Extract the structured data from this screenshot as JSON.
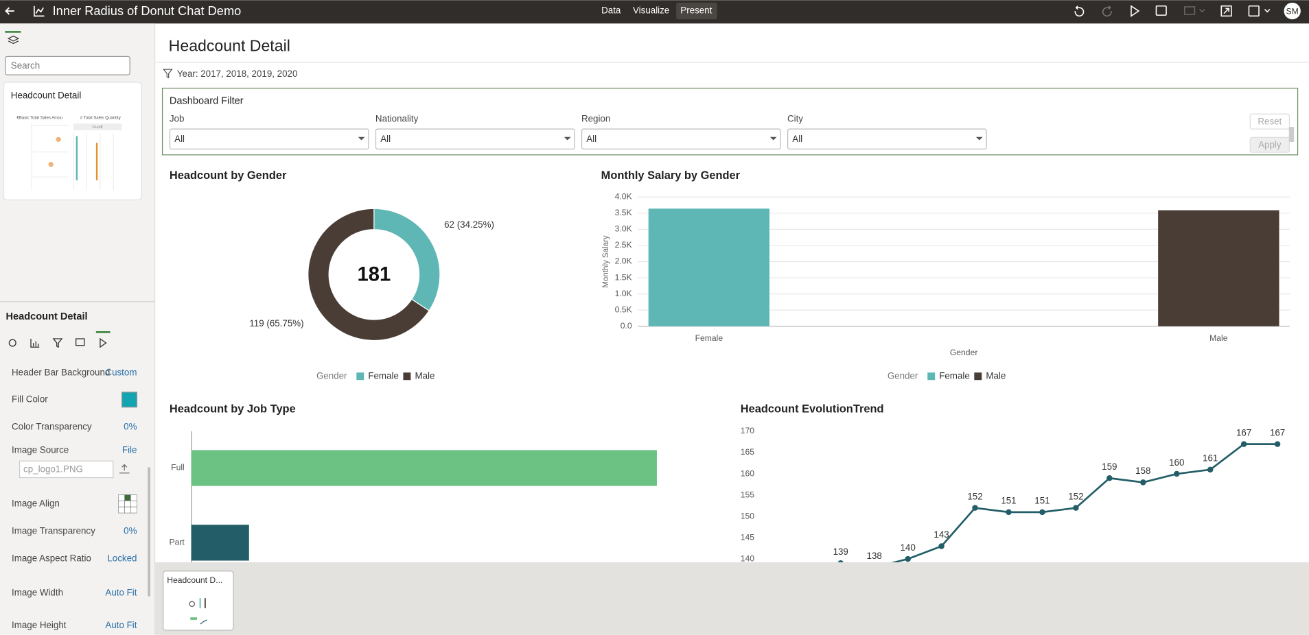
{
  "app": {
    "title": "Inner Radius of Donut Chat Demo",
    "tabs": [
      "Data",
      "Visualize",
      "Present"
    ],
    "active_tab": 2,
    "user": "SM"
  },
  "sidebar": {
    "search": "Search",
    "canvas_card": {
      "title": "Headcount Detail",
      "thumb_texts": [
        "€Basic Total Sales Amou",
        "# Total Sales Quantity",
        "FALSE"
      ]
    },
    "section_title": "Headcount Detail",
    "properties": [
      {
        "label": "Header Bar Background",
        "value": "Custom"
      },
      {
        "label": "Fill Color",
        "color": "#14a3b0"
      },
      {
        "label": "Color Transparency",
        "value": "0%"
      },
      {
        "label": "Image Source",
        "value": "File",
        "input": "cp_logo1.PNG"
      },
      {
        "label": "Image Align"
      },
      {
        "label": "Image Transparency",
        "value": "0%"
      },
      {
        "label": "Image Aspect Ratio",
        "value": "Locked"
      },
      {
        "label": "Image Width",
        "value": "Auto Fit"
      },
      {
        "label": "Image Height",
        "value": "Auto Fit"
      }
    ]
  },
  "page": {
    "title": "Headcount Detail",
    "filter": "Year: 2017, 2018, 2019, 2020"
  },
  "dashboard_filter": {
    "title": "Dashboard Filter",
    "fields": [
      {
        "label": "Job",
        "value": "All"
      },
      {
        "label": "Nationality",
        "value": "All"
      },
      {
        "label": "Region",
        "value": "All"
      },
      {
        "label": "City",
        "value": "All"
      }
    ],
    "buttons": [
      "Reset",
      "Apply"
    ]
  },
  "charts": {
    "donut": {
      "type": "pie",
      "title": "Headcount by Gender",
      "total": 181,
      "categories": [
        "Female",
        "Male"
      ],
      "values": [
        62,
        119
      ],
      "value_labels": [
        "62 (34.25%)",
        "119 (65.75%)"
      ],
      "colors": [
        "#5fb7b5",
        "#4a3d35"
      ],
      "legend_title": "Gender"
    },
    "salary": {
      "type": "bar",
      "title": "Monthly Salary by Gender",
      "y_label": "Monthly Salary",
      "x_label": "Gender",
      "categories": [
        "Female",
        "Male"
      ],
      "values": [
        3640,
        3590
      ],
      "colors": [
        "#5fb7b5",
        "#4a3d35"
      ],
      "ylim": [
        0,
        4000
      ],
      "yticks": [
        {
          "value": 0,
          "label": "0.0"
        },
        {
          "value": 500,
          "label": "0.5K"
        },
        {
          "value": 1000,
          "label": "1.0K"
        },
        {
          "value": 1500,
          "label": "1.5K"
        },
        {
          "value": 2000,
          "label": "2.0K"
        },
        {
          "value": 2500,
          "label": "2.5K"
        },
        {
          "value": 3000,
          "label": "3.0K"
        },
        {
          "value": 3500,
          "label": "3.5K"
        },
        {
          "value": 4000,
          "label": "4.0K"
        }
      ],
      "grid": true,
      "legend_title": "Gender"
    },
    "jobtype": {
      "type": "hbar",
      "title": "Headcount by Job Type",
      "categories": [
        "Full",
        "Part"
      ],
      "values": [
        161,
        20
      ],
      "colors": [
        "#6bc283",
        "#235e68"
      ],
      "xlim": [
        0,
        185
      ]
    },
    "trend": {
      "type": "line",
      "title": "Headcount EvolutionTrend",
      "values": [
        139,
        138,
        140,
        143,
        152,
        151,
        151,
        152,
        159,
        158,
        160,
        161,
        167,
        167
      ],
      "color": "#235e68",
      "ylim": [
        130,
        170
      ],
      "yticks": [
        140,
        145,
        150,
        155,
        160,
        165,
        170
      ]
    }
  },
  "bottom_bar": {
    "card": "Headcount D..."
  }
}
